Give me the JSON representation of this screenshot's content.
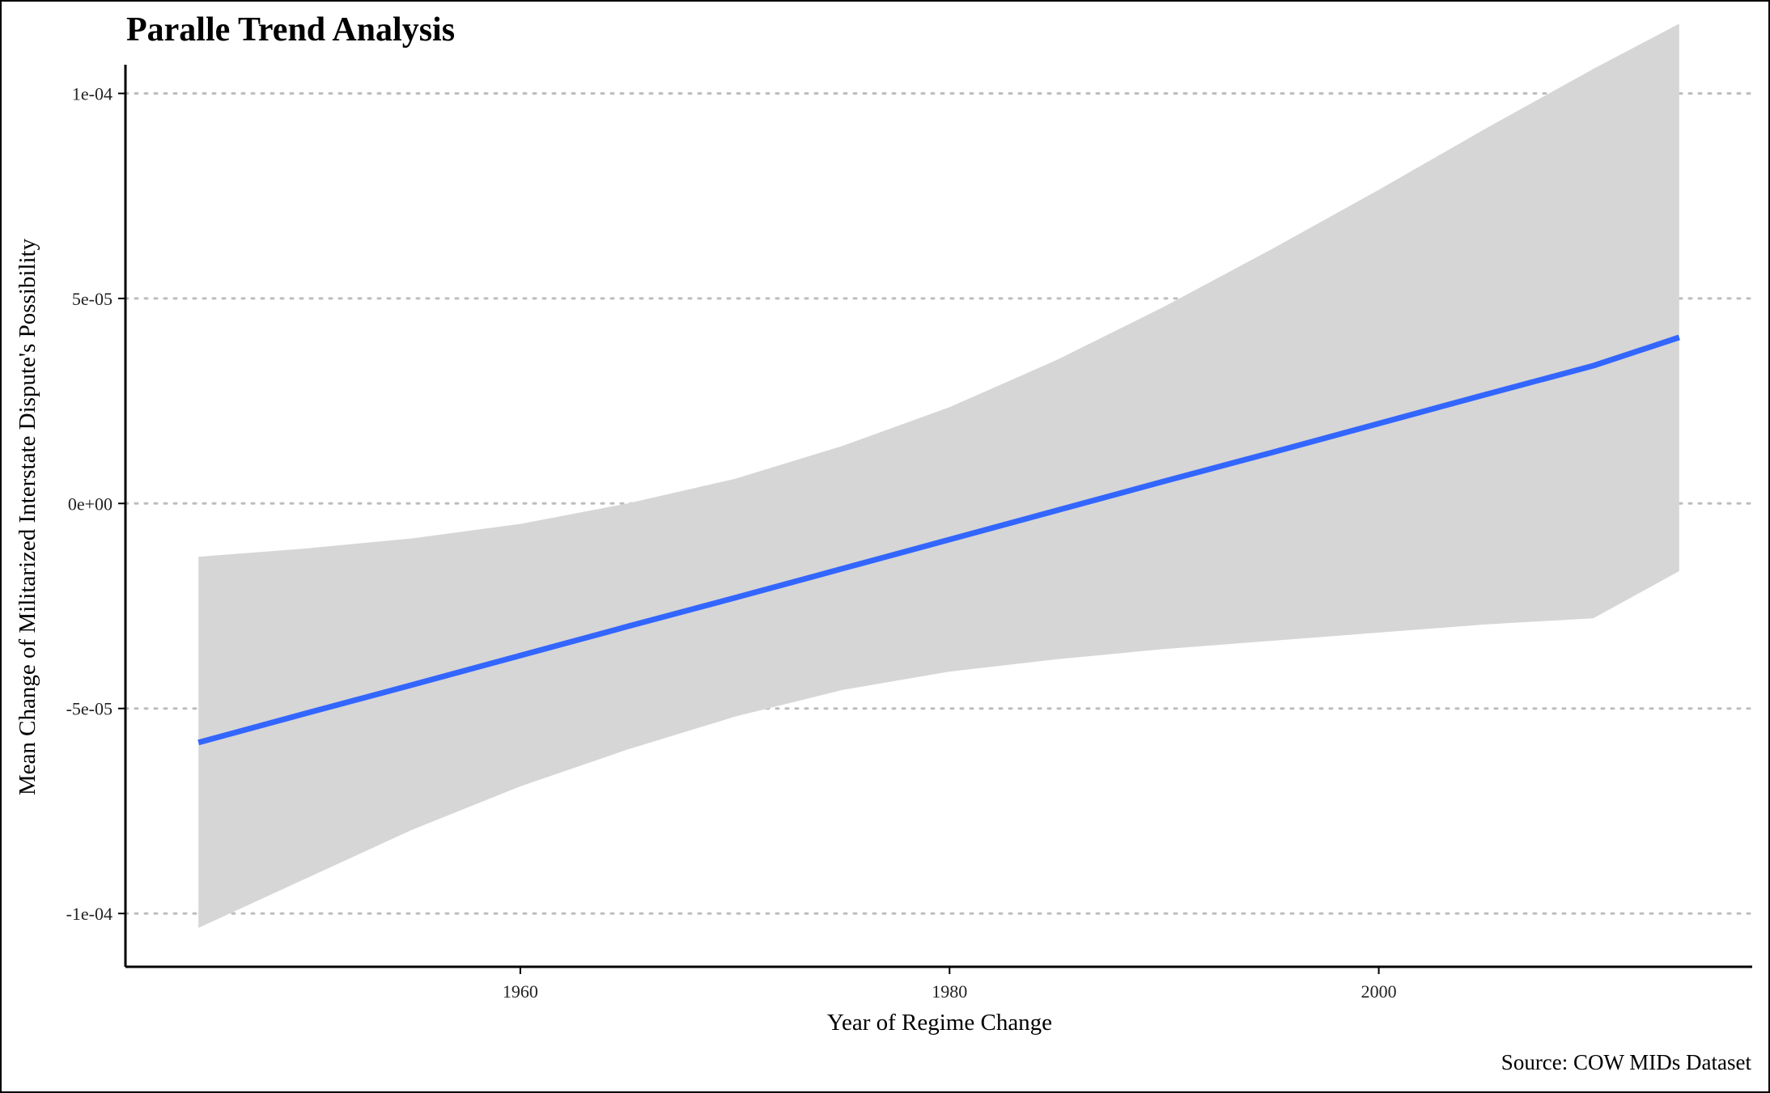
{
  "chart_data": {
    "type": "line",
    "title": "Paralle Trend Analysis",
    "xlabel": "Year of Regime Change",
    "ylabel": "Mean Change of Militarized Interstate Dispute's Possibility",
    "caption": "Source: COW MIDs Dataset",
    "xlim": [
      1941.6,
      2017.4
    ],
    "ylim": [
      -0.000113,
      0.000107
    ],
    "x_ticks": [
      1960,
      1980,
      2000
    ],
    "x_tick_labels": [
      "1960",
      "1980",
      "2000"
    ],
    "y_ticks": [
      -0.0001,
      -5e-05,
      0,
      5e-05,
      0.0001
    ],
    "y_tick_labels": [
      "-1e-04",
      "-5e-05",
      "0e+00",
      "5e-05",
      "1e-04"
    ],
    "grid": "horizontal dotted",
    "legend": "none",
    "series": [
      {
        "x": [
          1945,
          1950,
          1955,
          1960,
          1965,
          1970,
          1975,
          1980,
          1985,
          1990,
          1995,
          2000,
          2005,
          2010,
          2014
        ],
        "y": [
          -5.83e-05,
          -5.12e-05,
          -4.42e-05,
          -3.71e-05,
          -3e-05,
          -2.3e-05,
          -1.59e-05,
          -8.8e-06,
          -1.7e-06,
          5.4e-06,
          1.24e-05,
          1.95e-05,
          2.66e-05,
          3.36e-05,
          4.05e-05
        ],
        "ci_upper": [
          -1.3e-05,
          -1.1e-05,
          -8.5e-06,
          -5e-06,
          0.0,
          6e-06,
          1.4e-05,
          2.35e-05,
          3.5e-05,
          4.8e-05,
          6.2e-05,
          7.65e-05,
          9.15e-05,
          0.000106,
          0.000117
        ],
        "ci_lower": [
          -0.0001035,
          -9.15e-05,
          -7.95e-05,
          -6.9e-05,
          -6e-05,
          -5.2e-05,
          -4.55e-05,
          -4.1e-05,
          -3.8e-05,
          -3.55e-05,
          -3.35e-05,
          -3.15e-05,
          -2.95e-05,
          -2.8e-05,
          -1.65e-05
        ]
      }
    ],
    "colors": {
      "line": "#3366ff",
      "ribbon": "#d6d6d6",
      "grid": "#bdbdbd",
      "axis": "#000000"
    }
  }
}
